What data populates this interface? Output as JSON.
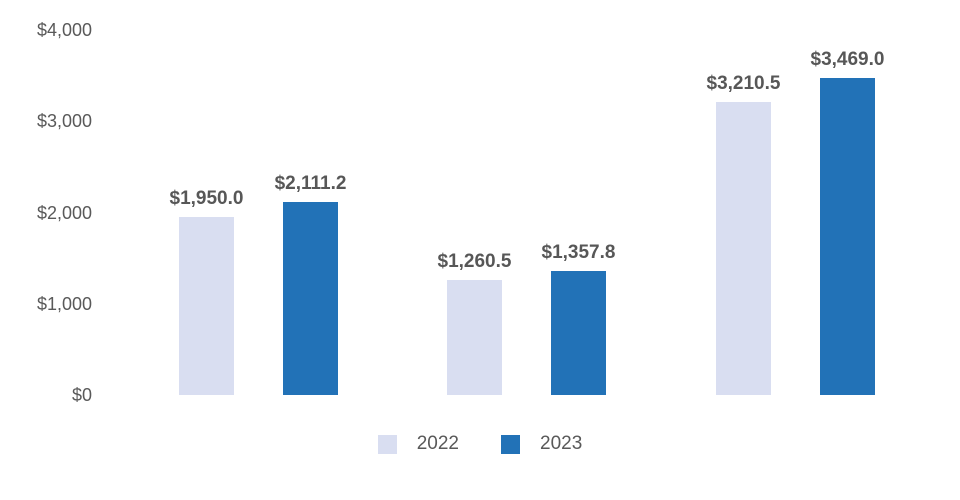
{
  "colors": {
    "series_2022": "#D9DEF1",
    "series_2023": "#2272B7",
    "bar_label": "#575757",
    "axis_label": "#595959",
    "background": "#FFFFFF"
  },
  "chart_data": {
    "type": "bar",
    "grouping": "grouped",
    "categories": [
      "",
      "",
      ""
    ],
    "series": [
      {
        "name": "2022",
        "color": "#D9DEF1",
        "values": [
          1950.0,
          1260.5,
          3210.5
        ],
        "labels": [
          "$1,950.0",
          "$1,260.5",
          "$3,210.5"
        ]
      },
      {
        "name": "2023",
        "color": "#2272B7",
        "values": [
          2111.2,
          1357.8,
          3469.0
        ],
        "labels": [
          "$2,111.2",
          "$1,357.8",
          "$3,469.0"
        ]
      }
    ],
    "y_axis": {
      "min": 0,
      "max": 4000,
      "ticks": [
        0,
        1000,
        2000,
        3000,
        4000
      ],
      "tick_labels": [
        "$0",
        "$1,000",
        "$2,000",
        "$3,000",
        "$4,000"
      ]
    },
    "title": "",
    "xlabel": "",
    "ylabel": "",
    "grid": false,
    "axis_lines": false,
    "legend_position": "bottom",
    "legend": [
      "2022",
      "2023"
    ]
  }
}
